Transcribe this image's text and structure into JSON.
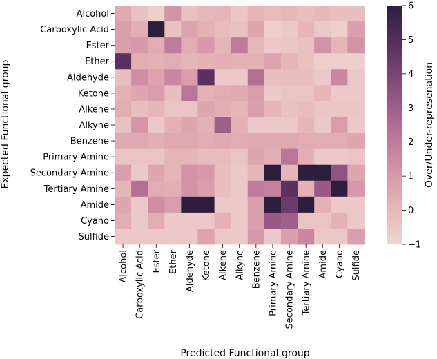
{
  "chart_data": {
    "type": "heatmap",
    "xlabel": "Predicted Functional group",
    "ylabel": "Expected Functional group",
    "colorbar_label": "Over/Under-represenation",
    "x_categories": [
      "Alcohol",
      "Carboxylic Acid",
      "Ester",
      "Ether",
      "Aldehyde",
      "Ketone",
      "Alkene",
      "Alkyne",
      "Benzene",
      "Primary Amine",
      "Secondary Amine",
      "Tertiary Amine",
      "Amide",
      "Cyano",
      "Sulfide"
    ],
    "y_categories": [
      "Alcohol",
      "Carboxylic Acid",
      "Ester",
      "Ether",
      "Aldehyde",
      "Ketone",
      "Alkene",
      "Alkyne",
      "Benzene",
      "Primary Amine",
      "Secondary Amine",
      "Tertiary Amine",
      "Amide",
      "Cyano",
      "Sulfide"
    ],
    "values": [
      [
        0.5,
        -0.3,
        -0.8,
        1.2,
        -0.3,
        0.0,
        0.1,
        -0.5,
        0.1,
        -0.1,
        0.0,
        -0.2,
        0.0,
        -0.2,
        -0.2
      ],
      [
        0.8,
        0.3,
        6.0,
        -0.3,
        0.7,
        0.2,
        -0.1,
        -0.3,
        0.6,
        -0.8,
        -0.6,
        0.1,
        -0.6,
        -0.8,
        0.8
      ],
      [
        0.8,
        1.0,
        0.4,
        2.0,
        0.4,
        1.0,
        0.1,
        2.0,
        0.0,
        -0.6,
        -0.5,
        -0.3,
        1.2,
        0.1,
        1.2
      ],
      [
        4.8,
        0.3,
        0.2,
        0.4,
        0.1,
        0.2,
        0.3,
        0.2,
        0.2,
        0.7,
        0.1,
        -0.3,
        -0.8,
        -0.8,
        -0.8
      ],
      [
        -0.2,
        1.4,
        0.7,
        1.6,
        0.9,
        4.8,
        -0.6,
        -0.6,
        2.4,
        -0.2,
        -0.2,
        -0.2,
        -0.6,
        1.6,
        -0.6
      ],
      [
        0.2,
        0.6,
        0.9,
        -0.2,
        2.2,
        0.2,
        0.4,
        0.5,
        0.9,
        -0.6,
        -0.4,
        -0.4,
        0.1,
        -0.6,
        -0.6
      ],
      [
        0.4,
        -0.2,
        0.1,
        -0.4,
        -0.4,
        0.6,
        0.3,
        0.1,
        0.8,
        0.1,
        -0.3,
        -0.1,
        -0.5,
        -0.5,
        -0.5
      ],
      [
        -0.3,
        1.1,
        -0.6,
        0.2,
        0.6,
        0.2,
        3.0,
        0.2,
        -0.6,
        -0.6,
        -0.6,
        0.1,
        -0.6,
        0.9,
        -0.6
      ],
      [
        0.5,
        0.5,
        0.3,
        0.5,
        0.5,
        0.4,
        0.5,
        0.4,
        0.5,
        0.5,
        0.5,
        0.4,
        0.4,
        0.4,
        0.6
      ],
      [
        -0.4,
        -0.4,
        -0.4,
        0.1,
        0.1,
        -0.1,
        -0.1,
        -0.4,
        0.6,
        0.3,
        2.2,
        0.3,
        -0.6,
        -0.6,
        -0.4
      ],
      [
        0.8,
        -0.6,
        0.6,
        0.1,
        1.2,
        1.0,
        -0.2,
        -0.6,
        0.1,
        6.0,
        0.1,
        6.0,
        6.0,
        3.4,
        0.6
      ],
      [
        0.1,
        2.4,
        0.4,
        0.3,
        1.2,
        0.8,
        -0.2,
        -0.6,
        2.0,
        1.8,
        4.8,
        0.2,
        3.2,
        6.0,
        1.0
      ],
      [
        0.6,
        -0.6,
        1.4,
        0.9,
        6.0,
        6.0,
        -0.6,
        -0.6,
        0.8,
        6.0,
        4.4,
        6.0,
        0.2,
        -0.6,
        -0.6
      ],
      [
        0.4,
        -0.6,
        0.4,
        -0.6,
        -0.6,
        -0.6,
        0.2,
        -0.6,
        0.8,
        3.2,
        3.0,
        -0.4,
        -0.4,
        0.2,
        -0.6
      ],
      [
        -0.6,
        -0.6,
        -0.6,
        -0.6,
        -0.6,
        0.7,
        -0.6,
        -0.6,
        1.0,
        -0.6,
        0.8,
        1.6,
        -0.6,
        -0.6,
        0.8
      ]
    ],
    "vmin": -1,
    "vmax": 6,
    "colorbar_ticks": [
      "6",
      "5",
      "4",
      "3",
      "2",
      "1",
      "0",
      "−1"
    ],
    "colorbar_tick_values": [
      6,
      5,
      4,
      3,
      2,
      1,
      0,
      -1
    ],
    "colormap": [
      "#f0d5d1",
      "#e5b3b6",
      "#d18fa4",
      "#b06d94",
      "#864d7e",
      "#5a3061",
      "#2d1e3e"
    ]
  }
}
